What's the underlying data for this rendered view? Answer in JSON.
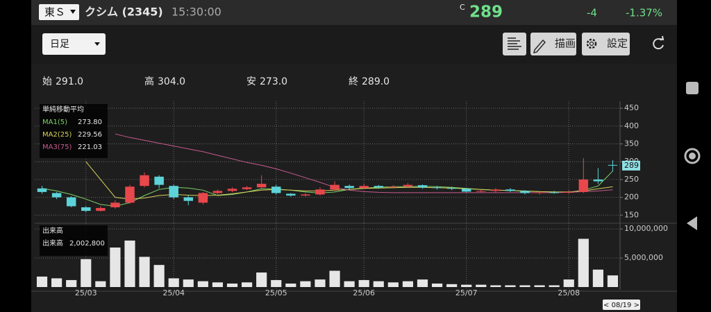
{
  "header": {
    "market": "東Ｓ",
    "name": "クシム (2345)",
    "time": "15:30:00",
    "price_flag": "C",
    "price": "289",
    "change": "-4",
    "change_pct": "-1.37%"
  },
  "toolbar": {
    "period": "日足",
    "draw": "描画",
    "settings": "設定"
  },
  "summary": [
    {
      "label": "始",
      "value": "291.0"
    },
    {
      "label": "高",
      "value": "304.0"
    },
    {
      "label": "安",
      "value": "273.0"
    },
    {
      "label": "終",
      "value": "289.0"
    }
  ],
  "date_tag": "< 08/19 >",
  "chart_data": [
    {
      "type": "candlestick",
      "title": "単純移動平均",
      "up_color": "#e8474c",
      "down_color": "#5cd3d9",
      "grid": true,
      "open": [
        225,
        212,
        200,
        172,
        162,
        172,
        185,
        232,
        258,
        232,
        200,
        185,
        212,
        218,
        223,
        228,
        230,
        210,
        205,
        208,
        222,
        232,
        226,
        232,
        228,
        230,
        234,
        228,
        226,
        224,
        216,
        218,
        222,
        218,
        212,
        214,
        213,
        215,
        250,
        291
      ],
      "high": [
        232,
        215,
        203,
        175,
        175,
        192,
        235,
        270,
        262,
        236,
        205,
        215,
        222,
        228,
        232,
        262,
        235,
        212,
        212,
        228,
        245,
        236,
        238,
        235,
        234,
        240,
        236,
        232,
        230,
        226,
        222,
        226,
        226,
        220,
        218,
        218,
        220,
        310,
        282,
        304
      ],
      "low": [
        210,
        195,
        172,
        158,
        160,
        168,
        182,
        228,
        225,
        195,
        178,
        180,
        208,
        214,
        220,
        225,
        208,
        202,
        202,
        205,
        218,
        222,
        224,
        224,
        225,
        226,
        224,
        222,
        220,
        214,
        213,
        214,
        215,
        208,
        208,
        210,
        210,
        212,
        238,
        273
      ],
      "close": [
        215,
        200,
        175,
        162,
        170,
        185,
        230,
        262,
        235,
        200,
        190,
        212,
        218,
        224,
        228,
        238,
        212,
        205,
        208,
        222,
        235,
        226,
        232,
        228,
        230,
        235,
        228,
        226,
        224,
        216,
        218,
        222,
        218,
        212,
        214,
        213,
        215,
        250,
        245,
        289
      ],
      "series": [
        {
          "name": "MA1(5)",
          "legend_value": "273.80",
          "color": "#7fd46a",
          "values": [
            225,
            218,
            208,
            195,
            180,
            175,
            185,
            205,
            222,
            228,
            226,
            220,
            205,
            208,
            215,
            224,
            223,
            220,
            215,
            212,
            215,
            222,
            226,
            228,
            230,
            230,
            231,
            230,
            228,
            225,
            222,
            220,
            219,
            217,
            216,
            215,
            214,
            220,
            232,
            273.8
          ]
        },
        {
          "name": "MA2(25)",
          "legend_value": "229.56",
          "color": "#d8d35a",
          "values": [
            null,
            null,
            null,
            300,
            250,
            200,
            195,
            198,
            205,
            208,
            206,
            205,
            206,
            210,
            215,
            220,
            222,
            220,
            218,
            218,
            220,
            222,
            225,
            226,
            227,
            228,
            228,
            227,
            226,
            224,
            222,
            220,
            219,
            218,
            216,
            215,
            215,
            218,
            224,
            229.56
          ]
        },
        {
          "name": "MA3(75)",
          "legend_value": "221.03",
          "color": "#c75a8e",
          "values": [
            null,
            null,
            null,
            null,
            null,
            378,
            368,
            360,
            352,
            344,
            336,
            328,
            318,
            308,
            298,
            290,
            280,
            268,
            255,
            242,
            228,
            220,
            216,
            214,
            213,
            213,
            213,
            213,
            213,
            213,
            213,
            213,
            213,
            213,
            213,
            213,
            214,
            216,
            218,
            221.03
          ]
        }
      ],
      "ylim": [
        135,
        462
      ],
      "yticks": [
        150,
        200,
        250,
        300,
        350,
        400,
        450
      ]
    },
    {
      "type": "bar",
      "title": "出来高",
      "legend_label": "出来高",
      "legend_value": "2,002,800",
      "color": "#e6e6e6",
      "grid": true,
      "categories": [
        null,
        null,
        null,
        "25/03",
        null,
        null,
        null,
        null,
        null,
        "25/04",
        null,
        null,
        null,
        null,
        null,
        null,
        "25/05",
        null,
        null,
        null,
        null,
        null,
        "25/06",
        null,
        null,
        null,
        null,
        null,
        null,
        "25/07",
        null,
        null,
        null,
        null,
        null,
        null,
        "25/08",
        null,
        null,
        null
      ],
      "values": [
        1800000,
        1500000,
        1200000,
        4800000,
        1000000,
        6800000,
        8000000,
        5200000,
        3800000,
        1500000,
        1300000,
        1000000,
        800000,
        600000,
        800000,
        2500000,
        1200000,
        600000,
        1000000,
        1300000,
        2800000,
        1000000,
        1200000,
        1000000,
        800000,
        1000000,
        1300000,
        600000,
        500000,
        400000,
        400000,
        300000,
        300000,
        300000,
        300000,
        300000,
        1300000,
        8300000,
        3000000,
        2002800
      ],
      "ylim": [
        0,
        10500000
      ],
      "yticks": [
        {
          "value": 5000000,
          "label": "5,000,000"
        },
        {
          "value": 10000000,
          "label": "10,000,000"
        }
      ]
    }
  ]
}
